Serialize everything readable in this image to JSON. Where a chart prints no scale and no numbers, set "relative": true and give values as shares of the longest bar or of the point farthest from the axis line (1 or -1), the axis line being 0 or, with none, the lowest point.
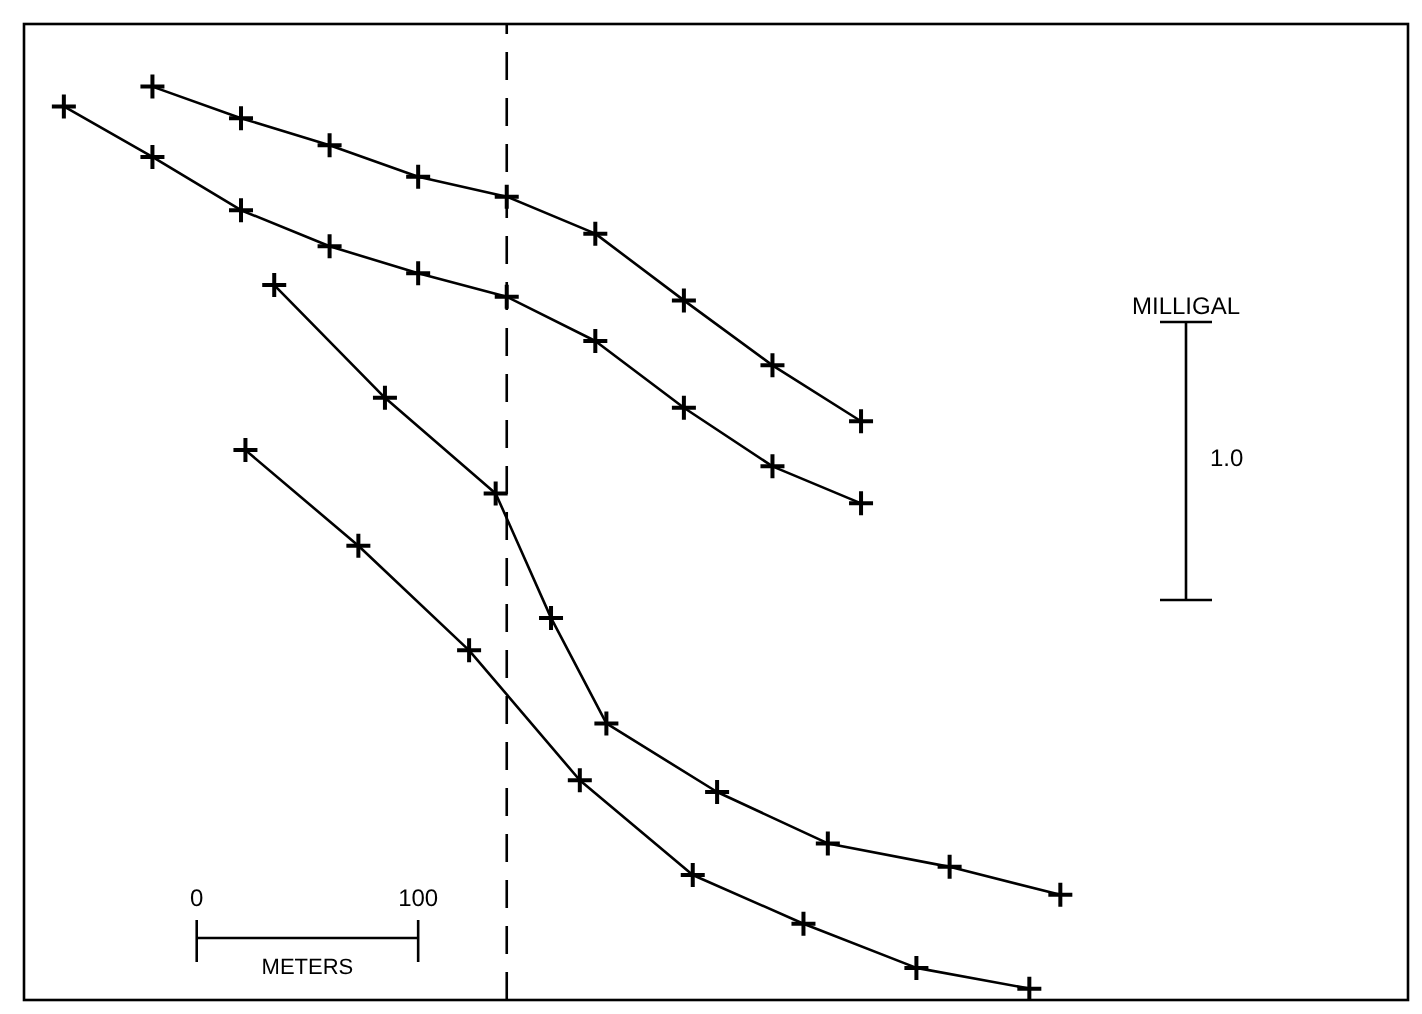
{
  "chart_data": {
    "type": "line",
    "relative": true,
    "xlabel": "METERS",
    "ylabel": "MILLIGAL",
    "annotations": [
      "1.0"
    ],
    "xlim": [
      -78,
      547
    ],
    "xticks": [
      0,
      100
    ],
    "tick_labels": "x",
    "marker": "cross",
    "line_style": "solid",
    "ref_lines": [
      {
        "axis": "x",
        "value": 140,
        "line_style": "dashed",
        "color": "#000000"
      }
    ],
    "series": [
      {
        "color": "#000000",
        "x": [
          -20,
          20,
          60,
          100,
          140,
          180,
          220,
          260,
          300
        ],
        "values": [
          1.0,
          0.965,
          0.935,
          0.9,
          0.878,
          0.837,
          0.763,
          0.691,
          0.629
        ]
      },
      {
        "color": "#000000",
        "x": [
          -60,
          -20,
          20,
          60,
          100,
          140,
          180,
          220,
          260,
          300
        ],
        "values": [
          0.978,
          0.922,
          0.863,
          0.823,
          0.793,
          0.767,
          0.718,
          0.644,
          0.579,
          0.538
        ]
      },
      {
        "color": "#000000",
        "x": [
          35,
          85,
          135,
          160,
          185,
          235,
          285,
          340,
          390
        ],
        "values": [
          0.78,
          0.655,
          0.549,
          0.411,
          0.294,
          0.218,
          0.161,
          0.135,
          0.104
        ]
      },
      {
        "color": "#000000",
        "x": [
          22,
          73,
          123,
          173,
          224,
          274,
          325,
          376
        ],
        "values": [
          0.597,
          0.491,
          0.375,
          0.231,
          0.126,
          0.072,
          0.023,
          0.0
        ]
      }
    ]
  }
}
